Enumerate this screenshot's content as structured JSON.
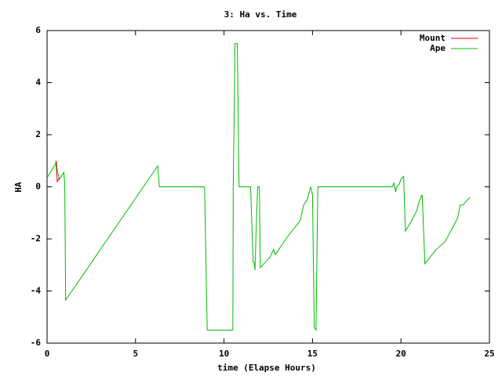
{
  "chart_data": {
    "type": "line",
    "title": "3: Ha vs. Time",
    "x_label": "time (Elapse Hours)",
    "y_label": "HA",
    "xlim": [
      0,
      25
    ],
    "xticks": [
      0,
      5,
      10,
      15,
      20,
      25
    ],
    "ylim": [
      -6,
      6
    ],
    "yticks": [
      -6,
      -4,
      -2,
      0,
      2,
      4,
      6
    ],
    "grid": false,
    "legend": "top-right",
    "series": [
      {
        "name": "Ape",
        "color": "#00bb00",
        "x": [
          0,
          0.45,
          0.53,
          0.58,
          0.7,
          0.95,
          1.0,
          1.05,
          6.25,
          6.35,
          8.9,
          9.05,
          10.5,
          10.52,
          10.6,
          10.62,
          10.75,
          10.85,
          11.5,
          11.65,
          11.7,
          11.75,
          11.8,
          11.9,
          12.0,
          12.05,
          12.6,
          12.8,
          12.9,
          13.5,
          14.3,
          14.5,
          14.7,
          14.9,
          15.0,
          15.1,
          15.2,
          15.3,
          19.5,
          19.6,
          19.7,
          19.75,
          19.9,
          20.0,
          20.15,
          20.25,
          20.6,
          20.9,
          21.0,
          21.2,
          21.35,
          22.0,
          22.5,
          23.2,
          23.35,
          23.5,
          23.9
        ],
        "values": [
          0.35,
          0.85,
          0.95,
          0.6,
          0.3,
          0.55,
          0.1,
          -4.35,
          0.8,
          0,
          0,
          -5.5,
          -5.5,
          0,
          4.2,
          5.5,
          5.5,
          0,
          0,
          -2.9,
          -2.9,
          -3.2,
          -2.0,
          0,
          0,
          -3.1,
          -2.7,
          -2.4,
          -2.6,
          -2.0,
          -1.3,
          -0.7,
          -0.5,
          0,
          -0.3,
          -5.4,
          -5.5,
          0,
          0,
          0.15,
          -0.2,
          0,
          0.1,
          0.3,
          0.4,
          -1.7,
          -1.3,
          -0.9,
          -0.6,
          -0.3,
          -2.95,
          -2.4,
          -2.1,
          -1.2,
          -0.7,
          -0.7,
          -0.4
        ]
      },
      {
        "name": "Mount",
        "color": "#dd0000",
        "x": [
          0.5,
          0.58,
          0.7
        ],
        "values": [
          1.0,
          0.2,
          0.35
        ]
      }
    ],
    "legend_order": [
      "Mount",
      "Ape"
    ]
  }
}
